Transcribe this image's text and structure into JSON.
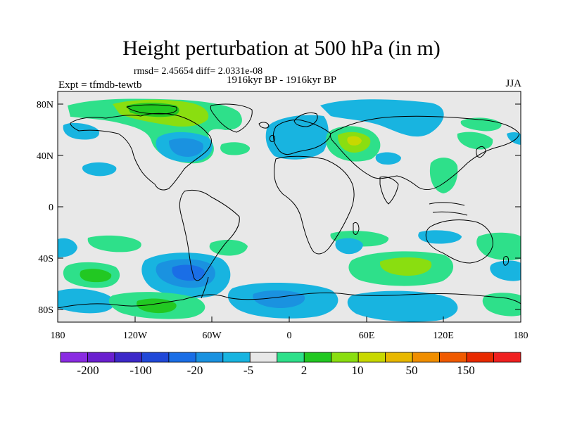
{
  "title": "Height perturbation at 500 hPa (in m)",
  "stats": "rmsd= 2.45654 diff= 2.0331e-08",
  "case": "1916kyr BP - 1916kyr BP",
  "expt": "Expt = tfmdb-tewtb",
  "season": "JJA",
  "lat_labels": [
    "80N",
    "40N",
    "0",
    "40S",
    "80S"
  ],
  "lon_labels": [
    "180",
    "120W",
    "60W",
    "0",
    "60E",
    "120E",
    "180"
  ],
  "colorbar": {
    "labels": [
      "-200",
      "-100",
      "-20",
      "-5",
      "2",
      "10",
      "50",
      "150"
    ],
    "colors": [
      "#8a2be2",
      "#6a1fcf",
      "#3c28c8",
      "#2048d8",
      "#1a6ee6",
      "#1a92e0",
      "#18b4e0",
      "#e8e8e8",
      "#2ee08a",
      "#22c822",
      "#8ade10",
      "#c8d800",
      "#e8b800",
      "#f08e00",
      "#f05a00",
      "#e82a00",
      "#f02020"
    ]
  },
  "colors": {
    "background_fill": "#e8e8e8",
    "coast": "#000000"
  }
}
